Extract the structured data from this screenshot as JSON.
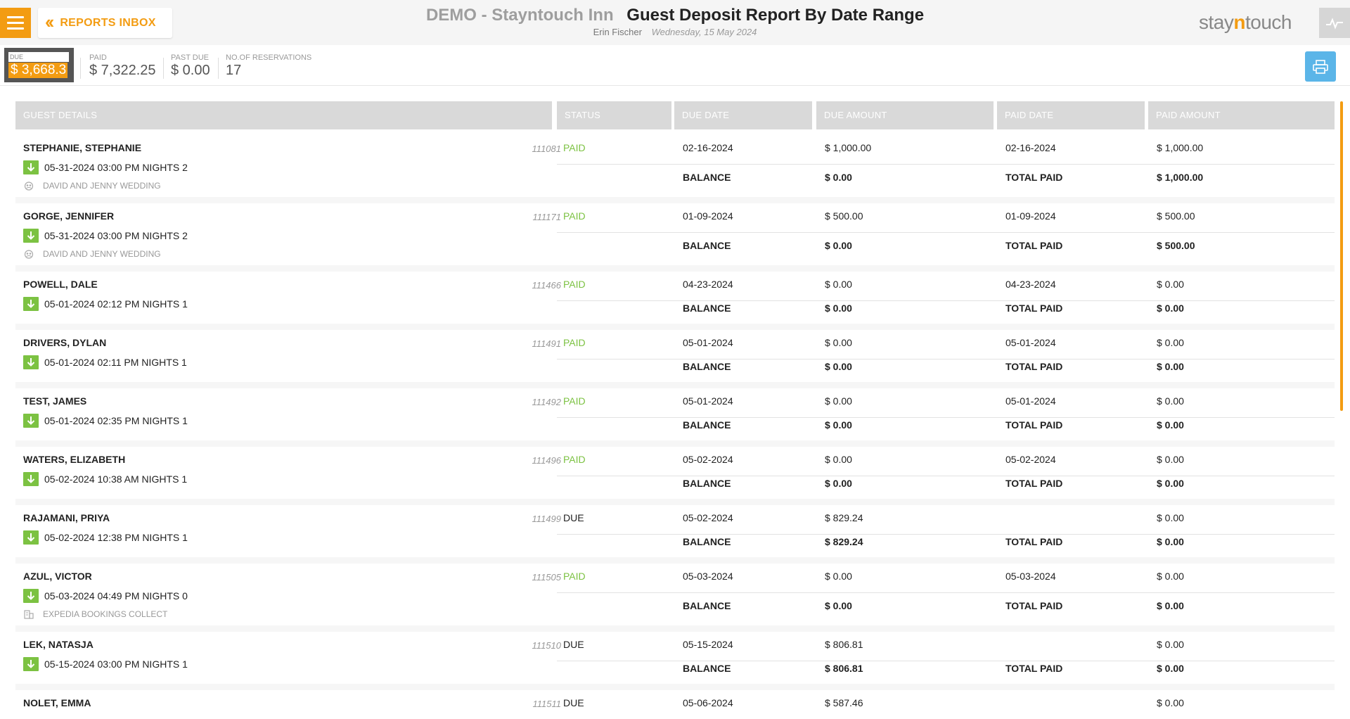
{
  "header": {
    "inbox_label": "REPORTS INBOX",
    "hotel_name": "DEMO - Stayntouch Inn",
    "report_title": "Guest Deposit Report By Date Range",
    "user_name": "Erin Fischer",
    "report_date": "Wednesday, 15 May 2024",
    "logo_pre": "stay",
    "logo_mid": "n",
    "logo_post": "touch"
  },
  "summary": {
    "due_label": "DUE",
    "due_value": "$ 3,668.3",
    "paid_label": "PAID",
    "paid_value": "$ 7,322.25",
    "past_due_label": "PAST DUE",
    "past_due_value": "$ 0.00",
    "reservations_label": "NO.OF RESERVATIONS",
    "reservations_value": "17"
  },
  "columns": {
    "guest": "GUEST DETAILS",
    "status": "STATUS",
    "due_date": "DUE DATE",
    "due_amount": "DUE AMOUNT",
    "paid_date": "PAID DATE",
    "paid_amount": "PAID AMOUNT"
  },
  "labels": {
    "balance": "BALANCE",
    "total_paid": "TOTAL PAID"
  },
  "colors": {
    "accent": "#f39c12",
    "paid_status": "#7cc242",
    "balance_red": "#e53935",
    "print_blue": "#5bb5e8"
  },
  "rows": [
    {
      "name": "STEPHANIE, STEPHANIE",
      "conf": "111081",
      "arrival": "05-31-2024 03:00 PM NIGHTS 2",
      "group": "DAVID AND JENNY WEDDING",
      "group_icon": "group-icon",
      "status": "PAID",
      "due_date": "02-16-2024",
      "due_amount": "$ 1,000.00",
      "paid_date": "02-16-2024",
      "paid_amount": "$ 1,000.00",
      "balance": "$ 0.00",
      "total_paid": "$ 1,000.00"
    },
    {
      "name": "GORGE, JENNIFER",
      "conf": "111171",
      "arrival": "05-31-2024 03:00 PM NIGHTS 2",
      "group": "DAVID AND JENNY WEDDING",
      "group_icon": "group-icon",
      "status": "PAID",
      "due_date": "01-09-2024",
      "due_amount": "$ 500.00",
      "paid_date": "01-09-2024",
      "paid_amount": "$ 500.00",
      "balance": "$ 0.00",
      "total_paid": "$ 500.00"
    },
    {
      "name": "POWELL, DALE",
      "conf": "111466",
      "arrival": "05-01-2024 02:12 PM NIGHTS 1",
      "group": "",
      "status": "PAID",
      "due_date": "04-23-2024",
      "due_amount": "$ 0.00",
      "paid_date": "04-23-2024",
      "paid_amount": "$ 0.00",
      "balance": "$ 0.00",
      "total_paid": "$ 0.00"
    },
    {
      "name": "DRIVERS, DYLAN",
      "conf": "111491",
      "arrival": "05-01-2024 02:11 PM NIGHTS 1",
      "group": "",
      "status": "PAID",
      "due_date": "05-01-2024",
      "due_amount": "$ 0.00",
      "paid_date": "05-01-2024",
      "paid_amount": "$ 0.00",
      "balance": "$ 0.00",
      "total_paid": "$ 0.00"
    },
    {
      "name": "TEST, JAMES",
      "conf": "111492",
      "arrival": "05-01-2024 02:35 PM NIGHTS 1",
      "group": "",
      "status": "PAID",
      "due_date": "05-01-2024",
      "due_amount": "$ 0.00",
      "paid_date": "05-01-2024",
      "paid_amount": "$ 0.00",
      "balance": "$ 0.00",
      "total_paid": "$ 0.00"
    },
    {
      "name": "WATERS, ELIZABETH",
      "conf": "111496",
      "arrival": "05-02-2024 10:38 AM NIGHTS 1",
      "group": "",
      "status": "PAID",
      "due_date": "05-02-2024",
      "due_amount": "$ 0.00",
      "paid_date": "05-02-2024",
      "paid_amount": "$ 0.00",
      "balance": "$ 0.00",
      "total_paid": "$ 0.00"
    },
    {
      "name": "RAJAMANI, PRIYA",
      "conf": "111499",
      "arrival": "05-02-2024 12:38 PM NIGHTS 1",
      "group": "",
      "status": "DUE",
      "due_date": "05-02-2024",
      "due_amount": "$ 829.24",
      "paid_date": "",
      "paid_amount": "$ 0.00",
      "balance": "$ 829.24",
      "total_paid": "$ 0.00"
    },
    {
      "name": "AZUL, VICTOR",
      "conf": "111505",
      "arrival": "05-03-2024 04:49 PM NIGHTS 0",
      "group": "EXPEDIA BOOKINGS COLLECT",
      "group_icon": "building-icon",
      "status": "PAID",
      "due_date": "05-03-2024",
      "due_amount": "$ 0.00",
      "paid_date": "05-03-2024",
      "paid_amount": "$ 0.00",
      "balance": "$ 0.00",
      "total_paid": "$ 0.00"
    },
    {
      "name": "LEK, NATASJA",
      "conf": "111510",
      "arrival": "05-15-2024 03:00 PM NIGHTS 1",
      "group": "",
      "status": "DUE",
      "due_date": "05-15-2024",
      "due_amount": "$ 806.81",
      "paid_date": "",
      "paid_amount": "$ 0.00",
      "balance": "$ 806.81",
      "total_paid": "$ 0.00"
    },
    {
      "name": "NOLET, EMMA",
      "conf": "111511",
      "arrival": "",
      "group": "",
      "status": "DUE",
      "due_date": "05-06-2024",
      "due_amount": "$ 587.46",
      "paid_date": "",
      "paid_amount": "$ 0.00",
      "balance": "",
      "total_paid": ""
    }
  ]
}
